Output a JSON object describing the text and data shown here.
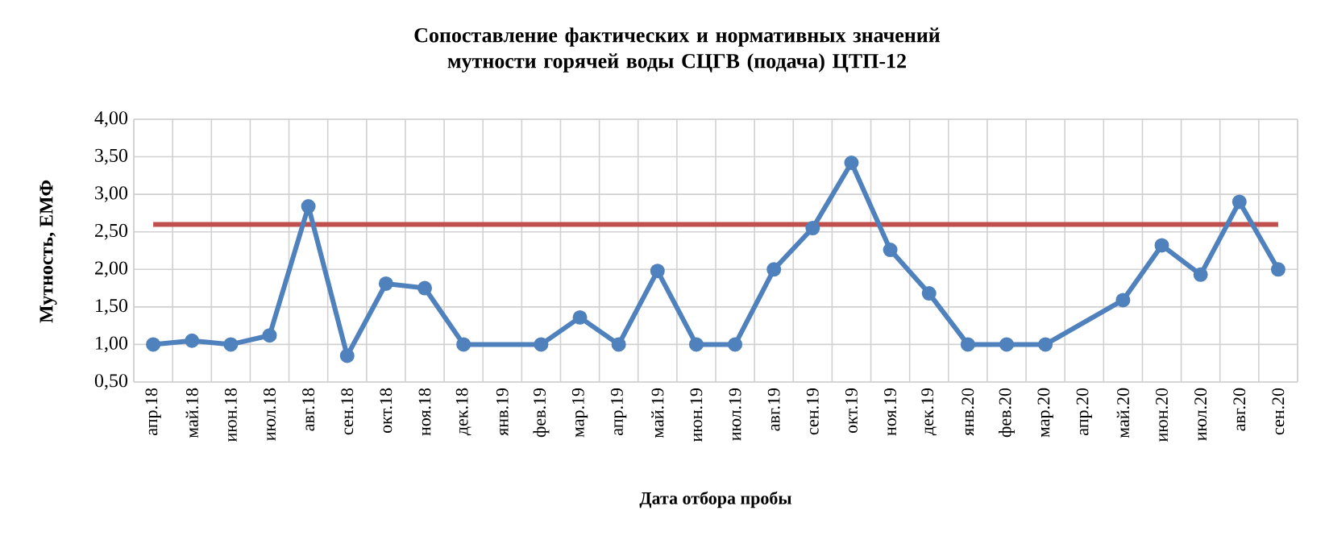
{
  "chart_data": {
    "type": "line",
    "title": "Сопоставление фактических и нормативных значений мутности горячей воды СЦГВ (подача) ЦТП-12",
    "xlabel": "Дата отбора пробы",
    "ylabel": "Мутность, ЕМФ",
    "categories": [
      "апр.18",
      "май.18",
      "июн.18",
      "июл.18",
      "авг.18",
      "сен.18",
      "окт.18",
      "ноя.18",
      "дек.18",
      "янв.19",
      "фев.19",
      "мар.19",
      "апр.19",
      "май.19",
      "июн.19",
      "июл.19",
      "авг.19",
      "сен.19",
      "окт.19",
      "ноя.19",
      "дек.19",
      "янв.20",
      "фев.20",
      "мар.20",
      "апр.20",
      "май.20",
      "июн.20",
      "июл.20",
      "авг.20",
      "сен.20"
    ],
    "series": [
      {
        "color": "#4f81bd",
        "values": [
          1.0,
          1.05,
          1.0,
          1.12,
          2.84,
          0.85,
          1.81,
          1.75,
          1.0,
          null,
          1.0,
          1.36,
          1.0,
          1.98,
          1.0,
          1.0,
          2.0,
          2.55,
          3.42,
          2.26,
          1.68,
          1.0,
          1.0,
          1.0,
          null,
          1.59,
          2.32,
          1.93,
          2.9,
          2.0
        ]
      }
    ],
    "ref_lines": [
      {
        "axis": "y",
        "value": 2.6,
        "color": "#c0504d"
      }
    ],
    "ylim": [
      0.5,
      4.0
    ],
    "yticks": [
      {
        "value": 0.5,
        "label": "0,50"
      },
      {
        "value": 1.0,
        "label": "1,00"
      },
      {
        "value": 1.5,
        "label": "1,50"
      },
      {
        "value": 2.0,
        "label": "2,00"
      },
      {
        "value": 2.5,
        "label": "2,50"
      },
      {
        "value": 3.0,
        "label": "3,00"
      },
      {
        "value": 3.5,
        "label": "3,50"
      },
      {
        "value": 4.0,
        "label": "4,00"
      }
    ],
    "grid": true,
    "marker": "circle",
    "line_style": "solid"
  }
}
